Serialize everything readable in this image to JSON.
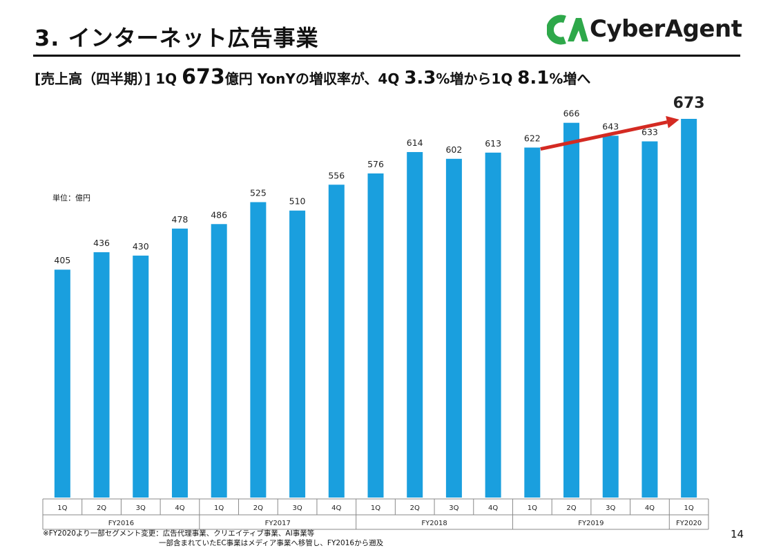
{
  "header": {
    "title": "3. インターネット広告事業",
    "logo_text": "CyberAgent",
    "logo_mark": "CA"
  },
  "headline": {
    "part1": "[売上高（四半期）] 1Q ",
    "part2": "673",
    "part3": "億円 YonYの増収率が、4Q ",
    "part4": "3.3",
    "part5": "%増から1Q ",
    "part6": "8.1",
    "part7": "%増へ"
  },
  "unit_label": "単位：億円",
  "footnote": {
    "line1": "※FY2020より一部セグメント変更：広告代理事業、クリエイティブ事業、AI事業等",
    "line2": "一部含まれていたEC事業はメディア事業へ移管し、FY2016から遡及"
  },
  "page_number": "14",
  "colors": {
    "bar": "#1a9fde",
    "arrow": "#d42a22",
    "text": "#111111"
  },
  "chart_data": {
    "type": "bar",
    "categories": [
      "1Q",
      "2Q",
      "3Q",
      "4Q",
      "1Q",
      "2Q",
      "3Q",
      "4Q",
      "1Q",
      "2Q",
      "3Q",
      "4Q",
      "1Q",
      "2Q",
      "3Q",
      "4Q",
      "1Q"
    ],
    "groups": [
      {
        "label": "FY2016",
        "count": 4
      },
      {
        "label": "FY2017",
        "count": 4
      },
      {
        "label": "FY2018",
        "count": 4
      },
      {
        "label": "FY2019",
        "count": 4
      },
      {
        "label": "FY2020",
        "count": 1
      }
    ],
    "values": [
      405,
      436,
      430,
      478,
      486,
      525,
      510,
      556,
      576,
      614,
      602,
      613,
      622,
      666,
      643,
      633,
      673
    ],
    "ylim": [
      0,
      673
    ],
    "highlight_label": "673",
    "annotations": [
      {
        "type": "arrow",
        "from_category_index": 12,
        "to_category_index": 16
      }
    ],
    "grid": false
  }
}
